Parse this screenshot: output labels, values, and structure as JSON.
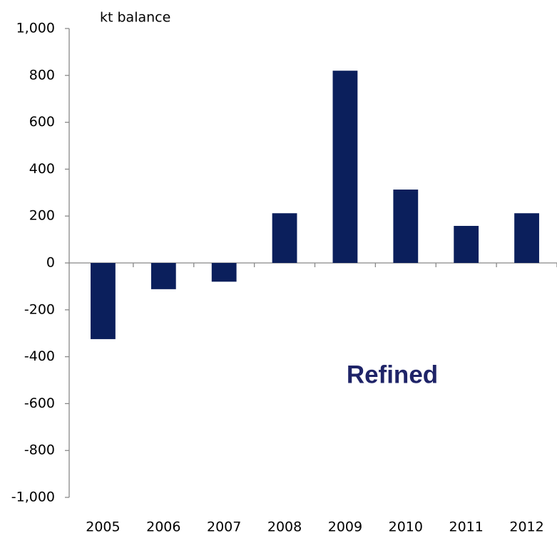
{
  "chart_data": {
    "type": "bar",
    "y_axis_label": "kt balance",
    "annotation": "Refined",
    "categories": [
      "2005",
      "2006",
      "2007",
      "2008",
      "2009",
      "2010",
      "2011",
      "2012"
    ],
    "values": [
      -325,
      -112,
      -80,
      212,
      820,
      313,
      158,
      212
    ],
    "color": "#0b1f5c",
    "ylim": [
      -1000,
      1000
    ],
    "yticks": [
      {
        "value": -1000,
        "label": "-1,000"
      },
      -800,
      -600,
      -400,
      -200,
      0,
      200,
      400,
      600,
      800,
      {
        "value": 1000,
        "label": "1,000"
      }
    ],
    "grid": false
  }
}
